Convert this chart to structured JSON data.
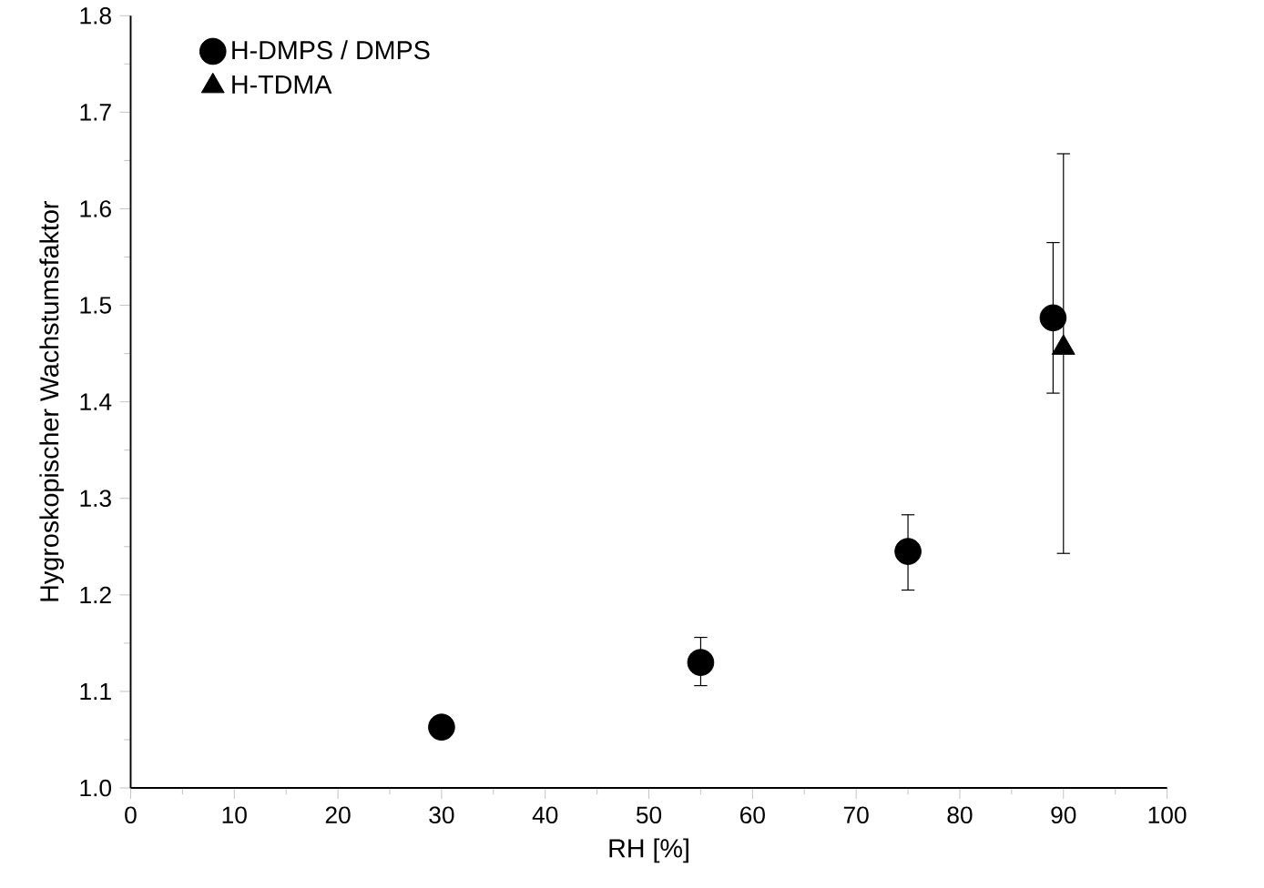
{
  "chart_data": {
    "type": "scatter",
    "xlabel": "RH [%]",
    "ylabel": "Hygroskopischer Wachstumsfaktor",
    "xlim": [
      0,
      100
    ],
    "xticks": [
      0,
      10,
      20,
      30,
      40,
      50,
      60,
      70,
      80,
      90,
      100
    ],
    "ylim": [
      1.0,
      1.8
    ],
    "yticks": [
      {
        "value": 1.0,
        "label": "1.0"
      },
      1.1,
      1.2,
      1.3,
      1.4,
      1.5,
      1.6,
      1.7,
      1.8
    ],
    "legend": "top left",
    "grid": false,
    "series": [
      {
        "name": "H-DMPS / DMPS",
        "color": "#000000",
        "marker": "circle",
        "x": [
          30,
          55,
          75,
          89
        ],
        "values": [
          1.063,
          1.13,
          1.245,
          1.487
        ],
        "errors": [
          null,
          [
            1.106,
            1.156
          ],
          [
            1.205,
            1.283
          ],
          [
            1.409,
            1.565
          ]
        ]
      },
      {
        "name": "H-TDMA",
        "color": "#000000",
        "marker": "triangle",
        "x": [
          90
        ],
        "values": [
          1.456
        ],
        "errors": [
          [
            1.243,
            1.657
          ]
        ]
      }
    ]
  }
}
